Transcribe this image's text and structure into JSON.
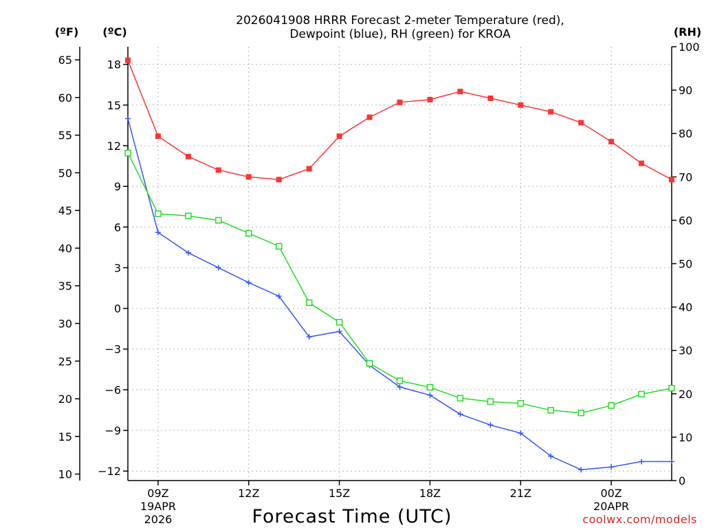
{
  "chart_data": {
    "type": "line",
    "title_line1": "2026041908 HRRR Forecast 2-meter Temperature (red),",
    "title_line2": "Dewpoint (blue), RH (green) for KROA",
    "xlabel": "Forecast Time (UTC)",
    "watermark": "coolwx.com/models",
    "left_unit_f": "(ºF)",
    "left_unit_c": "(ºC)",
    "right_unit": "(RH)",
    "x_range_hours": [
      8,
      26
    ],
    "celsius_range": [
      -12.7,
      19.3
    ],
    "rh_range": [
      0,
      100
    ],
    "celsius_ticks": [
      "18",
      "15",
      "12",
      "9",
      "6",
      "3",
      "0",
      "−3",
      "−6",
      "−9",
      "−12"
    ],
    "celsius_tick_values": [
      18,
      15,
      12,
      9,
      6,
      3,
      0,
      -3,
      -6,
      -9,
      -12
    ],
    "fahrenheit_ticks": [
      "65",
      "60",
      "55",
      "50",
      "45",
      "40",
      "35",
      "30",
      "25",
      "20",
      "15",
      "10"
    ],
    "fahrenheit_tick_values": [
      65,
      60,
      55,
      50,
      45,
      40,
      35,
      30,
      25,
      20,
      15,
      10
    ],
    "rh_ticks": [
      "100",
      "90",
      "80",
      "70",
      "60",
      "50",
      "40",
      "30",
      "20",
      "10",
      "0"
    ],
    "rh_tick_values": [
      100,
      90,
      80,
      70,
      60,
      50,
      40,
      30,
      20,
      10,
      0
    ],
    "x_ticks": [
      {
        "hour": 9,
        "label": "09Z",
        "date": "19APR",
        "year": "2026"
      },
      {
        "hour": 12,
        "label": "12Z"
      },
      {
        "hour": 15,
        "label": "15Z"
      },
      {
        "hour": 18,
        "label": "18Z"
      },
      {
        "hour": 21,
        "label": "21Z"
      },
      {
        "hour": 24,
        "label": "00Z",
        "date": "20APR"
      }
    ],
    "hours": [
      8,
      9,
      10,
      11,
      12,
      13,
      14,
      15,
      16,
      17,
      18,
      19,
      20,
      21,
      22,
      23,
      24,
      25,
      26
    ],
    "series": [
      {
        "name": "Temperature",
        "units": "C",
        "color": "#ff3333",
        "marker": "filled-square",
        "values": [
          18.3,
          12.7,
          11.2,
          10.2,
          9.7,
          9.5,
          10.3,
          12.7,
          14.1,
          15.2,
          15.4,
          16.0,
          15.5,
          15.0,
          14.5,
          13.7,
          12.3,
          10.7,
          9.5
        ]
      },
      {
        "name": "Dewpoint",
        "units": "C",
        "color": "#3355ff",
        "marker": "plus",
        "values": [
          14.0,
          5.6,
          4.1,
          3.0,
          1.9,
          0.9,
          -2.1,
          -1.7,
          -4.2,
          -5.8,
          -6.4,
          -7.8,
          -8.6,
          -9.2,
          -10.9,
          -11.9,
          -11.7,
          -11.3,
          -11.3
        ]
      },
      {
        "name": "RH",
        "units": "%",
        "color": "#22dd22",
        "marker": "open-square",
        "values": [
          75.5,
          61.5,
          61.0,
          60.0,
          57.0,
          54.0,
          41.0,
          36.5,
          27.0,
          23.0,
          21.5,
          19.0,
          18.2,
          17.8,
          16.2,
          15.6,
          17.3,
          19.9,
          21.3
        ]
      }
    ]
  }
}
